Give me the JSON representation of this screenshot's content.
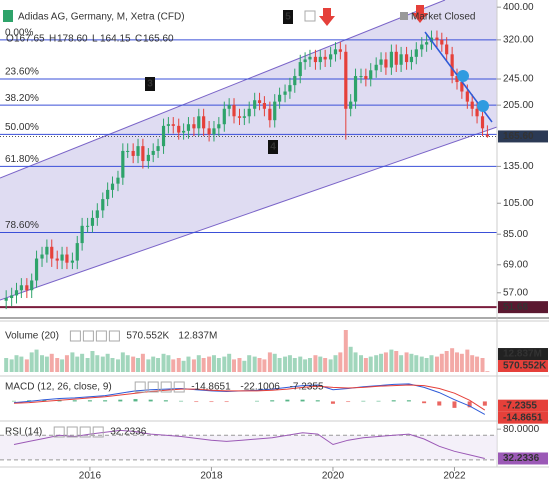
{
  "chart_data": [
    {
      "type": "candlestick",
      "title": "Adidas AG, Germany, M, Xetra (CFD)",
      "status": "Market Closed",
      "ohlc_labels": [
        "O",
        "H",
        "L",
        "C"
      ],
      "ohlc_value_labels": [
        "167.65",
        "178.60",
        "164.15",
        "165.60"
      ],
      "annotations": [
        "3",
        "4",
        "5"
      ],
      "log_scale": true,
      "ylim": [
        50,
        420
      ],
      "yticks": [
        {
          "value": 400,
          "label": "400.00"
        },
        {
          "value": 320,
          "label": "320.00"
        },
        {
          "value": 245,
          "label": "245.00"
        },
        {
          "value": 205,
          "label": "205.00"
        },
        {
          "value": 135,
          "label": "135.00"
        },
        {
          "value": 105,
          "label": "105.00"
        },
        {
          "value": 85,
          "label": "85.00"
        },
        {
          "value": 69,
          "label": "69.00"
        },
        {
          "value": 57,
          "label": "57.00"
        }
      ],
      "xlim": [
        2014.52,
        2022.7
      ],
      "xticks": [
        2016,
        2018,
        2020,
        2022
      ],
      "colors": {
        "up": "#2ea36a",
        "down": "#e5403a"
      },
      "fib_levels": {
        "labels": [
          "0.00%",
          "23.60%",
          "38.20%",
          "50.00%",
          "61.80%",
          "78.60%"
        ],
        "values": [
          320,
          245,
          205,
          168,
          135,
          86
        ],
        "color": "#3a4fd8"
      },
      "support": 51.68,
      "x": [
        2014.58,
        2014.67,
        2014.75,
        2014.83,
        2014.92,
        2015.0,
        2015.08,
        2015.17,
        2015.25,
        2015.33,
        2015.42,
        2015.5,
        2015.58,
        2015.67,
        2015.75,
        2015.83,
        2015.92,
        2016.0,
        2016.08,
        2016.17,
        2016.25,
        2016.33,
        2016.42,
        2016.5,
        2016.58,
        2016.67,
        2016.75,
        2016.83,
        2016.92,
        2017.0,
        2017.08,
        2017.17,
        2017.25,
        2017.33,
        2017.42,
        2017.5,
        2017.58,
        2017.67,
        2017.75,
        2017.83,
        2017.92,
        2018.0,
        2018.08,
        2018.17,
        2018.25,
        2018.33,
        2018.42,
        2018.5,
        2018.58,
        2018.67,
        2018.75,
        2018.83,
        2018.92,
        2019.0,
        2019.08,
        2019.17,
        2019.25,
        2019.33,
        2019.42,
        2019.5,
        2019.58,
        2019.67,
        2019.75,
        2019.83,
        2019.92,
        2020.0,
        2020.08,
        2020.17,
        2020.25,
        2020.33,
        2020.42,
        2020.5,
        2020.58,
        2020.67,
        2020.75,
        2020.83,
        2020.92,
        2021.0,
        2021.08,
        2021.17,
        2021.25,
        2021.33,
        2021.42,
        2021.5,
        2021.58,
        2021.67,
        2021.75,
        2021.83,
        2021.92,
        2022.0,
        2022.08,
        2022.17,
        2022.25,
        2022.33,
        2022.42,
        2022.5
      ],
      "open": [
        54,
        55,
        56,
        58,
        60,
        58,
        62,
        72,
        74,
        78,
        72,
        71,
        74,
        70,
        71,
        80,
        90,
        90,
        95,
        100,
        108,
        115,
        120,
        125,
        150,
        150,
        145,
        155,
        140,
        146,
        150,
        155,
        178,
        180,
        178,
        170,
        172,
        180,
        175,
        190,
        175,
        168,
        175,
        180,
        200,
        205,
        190,
        188,
        190,
        200,
        212,
        208,
        200,
        185,
        210,
        220,
        225,
        235,
        250,
        275,
        280,
        285,
        275,
        285,
        280,
        290,
        300,
        295,
        200,
        210,
        250,
        250,
        245,
        260,
        270,
        280,
        265,
        295,
        270,
        290,
        275,
        285,
        300,
        310,
        315,
        325,
        320,
        310,
        290,
        250,
        240,
        225,
        210,
        200,
        190,
        167.65
      ],
      "high": [
        58,
        59,
        61,
        63,
        63,
        65,
        76,
        78,
        82,
        82,
        76,
        78,
        78,
        75,
        84,
        95,
        95,
        100,
        105,
        113,
        121,
        126,
        131,
        158,
        158,
        158,
        163,
        163,
        153,
        158,
        163,
        187,
        189,
        189,
        187,
        181,
        189,
        189,
        200,
        200,
        184,
        184,
        189,
        210,
        215,
        215,
        200,
        200,
        210,
        223,
        223,
        218,
        210,
        221,
        231,
        236,
        247,
        263,
        289,
        294,
        299,
        299,
        299,
        299,
        305,
        315,
        315,
        310,
        221,
        263,
        263,
        263,
        273,
        284,
        294,
        294,
        310,
        310,
        305,
        305,
        299,
        315,
        326,
        331,
        341,
        341,
        336,
        326,
        305,
        263,
        252,
        236,
        221,
        210,
        200,
        178.6
      ],
      "low": [
        51,
        52,
        53,
        55,
        55,
        55,
        59,
        68,
        70,
        68,
        67,
        67,
        67,
        67,
        67,
        76,
        86,
        86,
        90,
        95,
        103,
        109,
        114,
        119,
        143,
        138,
        138,
        133,
        133,
        139,
        143,
        147,
        169,
        169,
        162,
        162,
        163,
        166,
        166,
        166,
        160,
        160,
        166,
        171,
        190,
        181,
        179,
        179,
        181,
        190,
        198,
        190,
        176,
        176,
        200,
        209,
        214,
        223,
        238,
        261,
        266,
        261,
        261,
        266,
        266,
        276,
        280,
        162,
        190,
        200,
        238,
        233,
        233,
        247,
        257,
        252,
        252,
        257,
        257,
        261,
        261,
        271,
        285,
        295,
        299,
        304,
        295,
        276,
        238,
        228,
        214,
        200,
        190,
        181,
        166,
        164.15
      ],
      "close": [
        55,
        56,
        58,
        60,
        58,
        62,
        72,
        74,
        78,
        72,
        71,
        74,
        70,
        71,
        80,
        90,
        90,
        95,
        100,
        108,
        115,
        120,
        125,
        150,
        150,
        145,
        155,
        140,
        146,
        150,
        155,
        178,
        180,
        178,
        170,
        172,
        180,
        175,
        190,
        175,
        168,
        175,
        180,
        200,
        205,
        190,
        188,
        190,
        200,
        212,
        208,
        200,
        185,
        210,
        220,
        225,
        235,
        250,
        275,
        280,
        285,
        275,
        285,
        280,
        290,
        300,
        295,
        200,
        210,
        250,
        250,
        245,
        260,
        270,
        280,
        265,
        295,
        270,
        290,
        275,
        285,
        300,
        310,
        315,
        325,
        320,
        310,
        290,
        250,
        240,
        225,
        210,
        200,
        190,
        175,
        165.6
      ]
    },
    {
      "type": "volume",
      "title": "Volume (20)",
      "ylim": [
        0,
        35
      ],
      "current": {
        "value": 0.570552,
        "label": "570.552K"
      },
      "average": {
        "value": 12.837,
        "label": "12.837M"
      },
      "values": [
        10,
        9,
        12,
        11,
        9,
        14,
        16,
        12,
        11,
        13,
        10,
        9,
        12,
        14,
        11,
        13,
        10,
        15,
        12,
        11,
        13,
        10,
        9,
        14,
        12,
        11,
        10,
        13,
        9,
        11,
        10,
        13,
        12,
        9,
        10,
        8,
        11,
        9,
        12,
        10,
        11,
        12,
        10,
        11,
        13,
        9,
        10,
        8,
        12,
        11,
        10,
        9,
        14,
        13,
        10,
        11,
        12,
        10,
        11,
        9,
        10,
        12,
        11,
        10,
        9,
        12,
        14,
        30,
        18,
        14,
        12,
        10,
        11,
        12,
        13,
        14,
        16,
        15,
        12,
        14,
        13,
        12,
        11,
        10,
        12,
        11,
        13,
        15,
        17,
        14,
        13,
        16,
        12,
        11,
        10,
        0.570552
      ]
    },
    {
      "type": "macd",
      "title": "MACD (12, 26, close, 9)",
      "ylim": [
        -30,
        40
      ],
      "x": [
        2014.75,
        2015.0,
        2015.25,
        2015.5,
        2015.75,
        2016.0,
        2016.25,
        2016.5,
        2016.75,
        2017.0,
        2017.25,
        2017.5,
        2017.75,
        2018.0,
        2018.25,
        2018.5,
        2018.75,
        2019.0,
        2019.25,
        2019.5,
        2019.75,
        2020.0,
        2020.25,
        2020.5,
        2020.75,
        2021.0,
        2021.25,
        2021.5,
        2021.75,
        2022.0,
        2022.25,
        2022.5
      ],
      "series": [
        {
          "color": "#2f5bd8",
          "values": [
            -2,
            0,
            3,
            5,
            6,
            8,
            10,
            14,
            18,
            20,
            21,
            22,
            20,
            18,
            17,
            18,
            19,
            21,
            24,
            27,
            28,
            20,
            22,
            25,
            27,
            29,
            30,
            24,
            15,
            3,
            -8,
            -22.1006
          ]
        },
        {
          "color": "#e5403a",
          "values": [
            -3,
            -2,
            0,
            2,
            4,
            6,
            8,
            11,
            14,
            17,
            19,
            21,
            21,
            19,
            18,
            18,
            18,
            19,
            21,
            24,
            26,
            24,
            23,
            24,
            26,
            27,
            28,
            27,
            22,
            14,
            2,
            -14.8651
          ]
        }
      ],
      "histogram": {
        "up": "#2ea36a",
        "down": "#e5403a",
        "values": [
          1,
          2,
          3,
          3,
          2,
          2,
          2,
          3,
          4,
          3,
          2,
          1,
          -1,
          -1,
          -1,
          0,
          1,
          2,
          3,
          3,
          2,
          -4,
          -1,
          1,
          1,
          2,
          2,
          -3,
          -7,
          -11,
          -10,
          -7.2355
        ]
      }
    },
    {
      "type": "line",
      "title": "RSI (14)",
      "ylim": [
        20,
        90
      ],
      "yticks": [
        {
          "value": 80,
          "label": "80.0000"
        }
      ],
      "levels": [
        70,
        30
      ],
      "color": "#9b59b6",
      "x": [
        2014.75,
        2015.0,
        2015.25,
        2015.5,
        2015.75,
        2016.0,
        2016.25,
        2016.5,
        2016.75,
        2017.0,
        2017.25,
        2017.5,
        2017.75,
        2018.0,
        2018.25,
        2018.5,
        2018.75,
        2019.0,
        2019.25,
        2019.5,
        2019.75,
        2020.0,
        2020.25,
        2020.5,
        2020.75,
        2021.0,
        2021.25,
        2021.5,
        2021.75,
        2022.0,
        2022.25,
        2022.5
      ],
      "values": [
        55,
        60,
        65,
        70,
        68,
        72,
        75,
        78,
        76,
        72,
        70,
        68,
        65,
        62,
        60,
        62,
        64,
        66,
        70,
        74,
        72,
        55,
        62,
        66,
        68,
        70,
        72,
        64,
        52,
        44,
        38,
        32.2336
      ]
    }
  ]
}
